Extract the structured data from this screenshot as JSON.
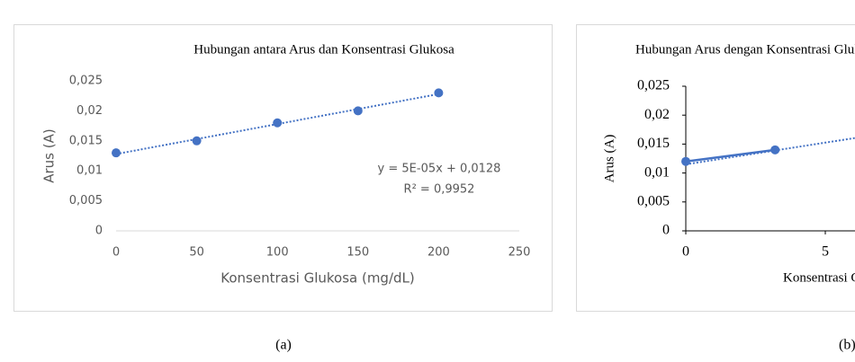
{
  "chart_data": [
    {
      "type": "scatter",
      "title": "Hubungan antara Arus dan Konsentrasi Glukosa",
      "x_label": "Konsentrasi Glukosa (mg/dL)",
      "y_label": "Arus (A)",
      "x": [
        0,
        50,
        100,
        150,
        200
      ],
      "values": [
        0.013,
        0.015,
        0.018,
        0.02,
        0.023
      ],
      "color": "#4472c4",
      "line": false,
      "trendline": {
        "slope": 5e-05,
        "intercept": 0.0128,
        "label": "y = 5E-05x + 0,0128",
        "r2_label": "R² = 0,9952"
      },
      "xlim": [
        0,
        250
      ],
      "xticks": [
        0,
        50,
        100,
        150,
        200,
        250
      ],
      "ylim": [
        0,
        0.025
      ],
      "yticks": [
        0,
        {
          "value": 0.005,
          "label": "0,005"
        },
        {
          "value": 0.01,
          "label": "0,01"
        },
        {
          "value": 0.015,
          "label": "0,015"
        },
        {
          "value": 0.02,
          "label": "0,02"
        },
        {
          "value": 0.025,
          "label": "0,025"
        }
      ],
      "caption": "(a)"
    },
    {
      "type": "scatter",
      "title": "Hubungan Arus dengan Konsentrasi Glukosa",
      "x_label": "Konsentrasi Glukosa",
      "y_label": "Arus (A)",
      "x": [
        0,
        3.2
      ],
      "values": [
        0.012,
        0.014
      ],
      "color": "#4472c4",
      "line": true,
      "trendline": {
        "slope": 0.00075,
        "intercept": 0.0115
      },
      "xlim": [
        0,
        10
      ],
      "xticks": [
        0,
        5
      ],
      "ylim": [
        0,
        0.025
      ],
      "yticks": [
        0,
        {
          "value": 0.005,
          "label": "0,005"
        },
        {
          "value": 0.01,
          "label": "0,01"
        },
        {
          "value": 0.015,
          "label": "0,015"
        },
        {
          "value": 0.02,
          "label": "0,02"
        },
        {
          "value": 0.025,
          "label": "0,025"
        }
      ],
      "caption": "(b)"
    }
  ]
}
